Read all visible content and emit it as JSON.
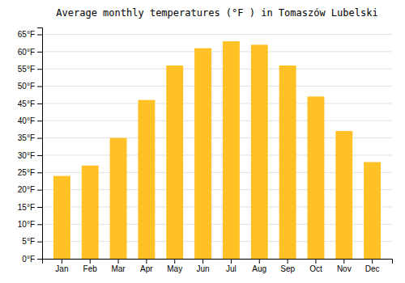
{
  "chart_data": {
    "type": "bar",
    "title": "Average monthly temperatures (°F ) in Tomaszów Lubelski",
    "categories": [
      "Jan",
      "Feb",
      "Mar",
      "Apr",
      "May",
      "Jun",
      "Jul",
      "Aug",
      "Sep",
      "Oct",
      "Nov",
      "Dec"
    ],
    "values": [
      24,
      27,
      35,
      46,
      56,
      61,
      63,
      62,
      56,
      47,
      37,
      28
    ],
    "color": "#FFC125",
    "ylim": [
      0,
      67
    ],
    "yticks": [
      {
        "value": 0,
        "label": "0°F"
      },
      {
        "value": 5,
        "label": "5°F"
      },
      {
        "value": 10,
        "label": "10°F"
      },
      {
        "value": 15,
        "label": "15°F"
      },
      {
        "value": 20,
        "label": "20°F"
      },
      {
        "value": 25,
        "label": "25°F"
      },
      {
        "value": 30,
        "label": "30°F"
      },
      {
        "value": 35,
        "label": "35°F"
      },
      {
        "value": 40,
        "label": "40°F"
      },
      {
        "value": 45,
        "label": "45°F"
      },
      {
        "value": 50,
        "label": "50°F"
      },
      {
        "value": 55,
        "label": "55°F"
      },
      {
        "value": 60,
        "label": "60°F"
      },
      {
        "value": 65,
        "label": "65°F"
      }
    ],
    "grid": true
  }
}
